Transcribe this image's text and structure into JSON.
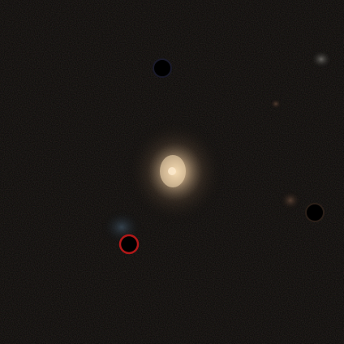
{
  "image": {
    "subject": "astronomical-field",
    "background_color": "#070605",
    "noise_color": "#1a140f",
    "galaxy": {
      "core_color": "#f6dcb4",
      "mid_color": "#bfa27f",
      "halo_color": "#4a3a2c"
    },
    "faint_sources": [
      {
        "name": "faint-star-upper-right",
        "color": "#6d6b66"
      },
      {
        "name": "faint-star-right",
        "color": "#5a4234"
      },
      {
        "name": "faint-star-left-cluster",
        "color": "#3a4b5a"
      }
    ],
    "masked_sources": [
      {
        "name": "masked-star-top",
        "fill": "#000000",
        "rim": "#1a1a2a"
      },
      {
        "name": "masked-star-right",
        "fill": "#000000",
        "rim": "#2a1f18"
      },
      {
        "name": "masked-star-lower-left",
        "fill": "#000000",
        "rim": "#b01818"
      }
    ]
  }
}
